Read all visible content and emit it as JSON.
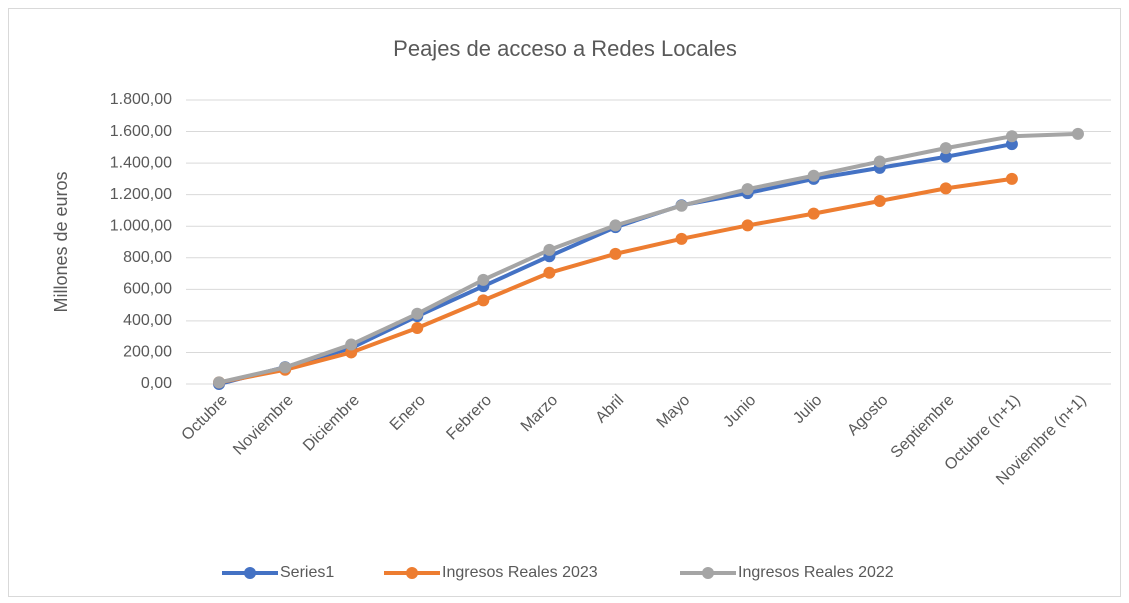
{
  "chart_data": {
    "type": "line",
    "title": "Peajes de acceso a Redes Locales",
    "y_label": "Millones de euros",
    "categories": [
      "Octubre",
      "Noviembre",
      "Diciembre",
      "Enero",
      "Febrero",
      "Marzo",
      "Abril",
      "Mayo",
      "Junio",
      "Julio",
      "Agosto",
      "Septiembre",
      "Octubre (n+1)",
      "Noviembre (n+1)"
    ],
    "series": [
      {
        "name": "Series1",
        "color": "#4472c4",
        "values": [
          0,
          107,
          228,
          430,
          620,
          810,
          994,
          1133,
          1210,
          1300,
          1370,
          1440,
          1520,
          null
        ]
      },
      {
        "name": "Ingresos Reales 2023",
        "color": "#ed7d31",
        "values": [
          10,
          90,
          200,
          355,
          530,
          705,
          825,
          920,
          1005,
          1080,
          1160,
          1240,
          1300,
          null
        ]
      },
      {
        "name": "Ingresos Reales 2022",
        "color": "#a5a5a5",
        "values": [
          10,
          105,
          250,
          445,
          660,
          850,
          1005,
          1130,
          1235,
          1320,
          1410,
          1495,
          1570,
          1585
        ]
      }
    ],
    "ylim": [
      0,
      1800
    ],
    "yticks": [
      {
        "value": 0,
        "label": "0,00"
      },
      {
        "value": 200,
        "label": "200,00"
      },
      {
        "value": 400,
        "label": "400,00"
      },
      {
        "value": 600,
        "label": "600,00"
      },
      {
        "value": 800,
        "label": "800,00"
      },
      {
        "value": 1000,
        "label": "1.000,00"
      },
      {
        "value": 1200,
        "label": "1.200,00"
      },
      {
        "value": 1400,
        "label": "1.400,00"
      },
      {
        "value": 1600,
        "label": "1.600,00"
      },
      {
        "value": 1800,
        "label": "1.800,00"
      }
    ],
    "grid": true,
    "legend": "bottom"
  }
}
